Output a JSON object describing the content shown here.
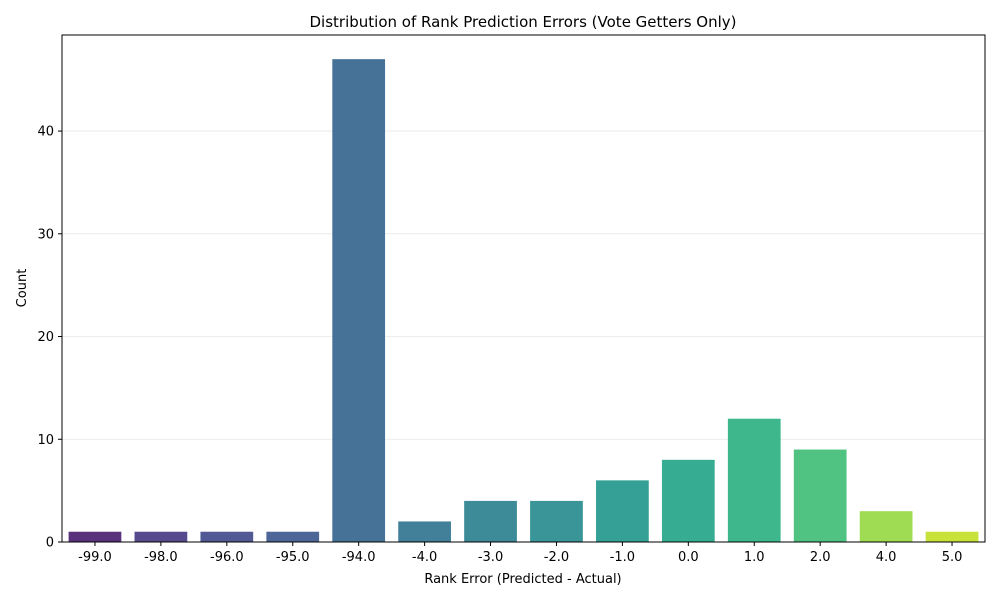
{
  "chart_data": {
    "type": "bar",
    "title": "Distribution of Rank Prediction Errors (Vote Getters Only)",
    "xlabel": "Rank Error (Predicted - Actual)",
    "ylabel": "Count",
    "categories": [
      "-99.0",
      "-98.0",
      "-96.0",
      "-95.0",
      "-94.0",
      "-4.0",
      "-3.0",
      "-2.0",
      "-1.0",
      "0.0",
      "1.0",
      "2.0",
      "4.0",
      "5.0"
    ],
    "values": [
      1,
      1,
      1,
      1,
      47,
      2,
      4,
      4,
      6,
      8,
      12,
      9,
      3,
      1
    ],
    "colors": [
      "#481c6e",
      "#453781",
      "#3f4889",
      "#39568c",
      "#33638d",
      "#2d718e",
      "#287d8e",
      "#238a8d",
      "#1f968b",
      "#20a386",
      "#29af7f",
      "#3dbc74",
      "#95d840",
      "#c2df23"
    ],
    "ylim": [
      0,
      49.35
    ],
    "yticks": [
      0,
      10,
      20,
      30,
      40
    ],
    "grid": "y",
    "bar_opacity": 0.9
  }
}
